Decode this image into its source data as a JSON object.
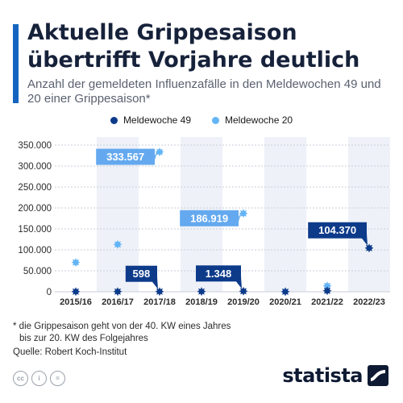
{
  "header": {
    "title": "Aktuelle Grippesaison übertrifft Vorjahre deutlich",
    "subtitle": "Anzahl der gemeldeten Influenzafälle in den Meldewochen 49 und 20 einer Grippesaison*"
  },
  "colors": {
    "accent": "#1565c0",
    "kw49": "#0d3b8a",
    "kw20": "#64b5f6",
    "band": "#eef1f8",
    "label_dark": "#0d3b8a",
    "label_light": "#64a9ef"
  },
  "chart_data": {
    "type": "scatter",
    "categories": [
      "2015/16",
      "2016/17",
      "2017/18",
      "2018/19",
      "2019/20",
      "2020/21",
      "2021/22",
      "2022/23"
    ],
    "series": [
      {
        "name": "Meldewoche 49",
        "values": [
          400,
          500,
          598,
          700,
          1348,
          150,
          2500,
          104370
        ]
      },
      {
        "name": "Meldewoche 20",
        "values": [
          70000,
          113000,
          333567,
          181000,
          186919,
          300,
          14000,
          null
        ]
      }
    ],
    "ylim": [
      0,
      350000
    ],
    "yticks": [
      0,
      50000,
      100000,
      150000,
      200000,
      250000,
      300000,
      350000
    ],
    "ytick_labels": [
      "0",
      "50.000",
      "100.000",
      "150.000",
      "200.000",
      "250.000",
      "300.000",
      "350.000"
    ],
    "grid": true,
    "legend_position": "top-center",
    "annotations": [
      {
        "series": 1,
        "index": 2,
        "text": "333.567",
        "style": "light",
        "anchor": "left"
      },
      {
        "series": 1,
        "index": 4,
        "text": "186.919",
        "style": "light",
        "anchor": "left"
      },
      {
        "series": 0,
        "index": 2,
        "text": "598",
        "style": "dark",
        "anchor": "above-left"
      },
      {
        "series": 0,
        "index": 4,
        "text": "1.348",
        "style": "dark",
        "anchor": "above-left"
      },
      {
        "series": 0,
        "index": 7,
        "text": "104.370",
        "style": "dark",
        "anchor": "above-left"
      }
    ]
  },
  "footer": {
    "footnote_line1": "* die Grippesaison geht von der 40. KW eines Jahres",
    "footnote_line2": "bis zur 20. KW des Folgejahres",
    "source": "Quelle: Robert Koch-Institut",
    "license_icons": [
      "cc-icon",
      "attribution-icon",
      "no-derivatives-icon"
    ],
    "brand": "statista"
  }
}
